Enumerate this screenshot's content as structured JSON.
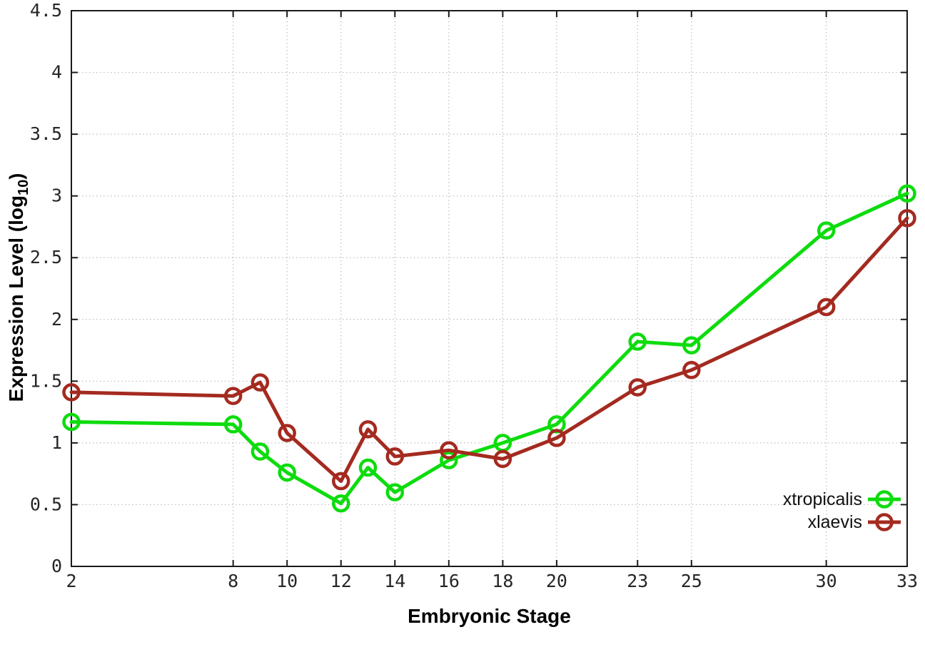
{
  "figure": {
    "background_color": "#ffffff",
    "border_color": "#1a1a1a",
    "grid_color": "#bdbdbd",
    "tick_label_color": "#262626"
  },
  "chart_data": {
    "type": "line",
    "title": "",
    "xlabel": "Embryonic Stage",
    "ylabel": {
      "prefix": "Expression Level (log",
      "subscript": "10",
      "suffix": ")"
    },
    "xlim": [
      2,
      33
    ],
    "ylim": [
      0,
      4.5
    ],
    "xticks": [
      2,
      8,
      10,
      12,
      14,
      16,
      18,
      20,
      23,
      25,
      30,
      33
    ],
    "yticks": [
      0,
      0.5,
      1,
      1.5,
      2,
      2.5,
      3,
      3.5,
      4,
      4.5
    ],
    "grid": true,
    "legend_position": "inside-bottom-right",
    "x": [
      2,
      8,
      9,
      10,
      12,
      13,
      14,
      16,
      18,
      20,
      23,
      25,
      30,
      33
    ],
    "series": [
      {
        "name": "xtropicalis",
        "color": "#0ddc0d",
        "marker": "open-circle",
        "values": [
          1.17,
          1.15,
          0.93,
          0.76,
          0.51,
          0.8,
          0.6,
          0.86,
          1.0,
          1.15,
          1.82,
          1.79,
          2.72,
          3.02
        ]
      },
      {
        "name": "xlaevis",
        "color": "#a42a20",
        "marker": "open-circle",
        "values": [
          1.41,
          1.38,
          1.49,
          1.08,
          0.69,
          1.11,
          0.89,
          0.94,
          0.87,
          1.04,
          1.45,
          1.59,
          2.1,
          2.82
        ]
      }
    ]
  }
}
